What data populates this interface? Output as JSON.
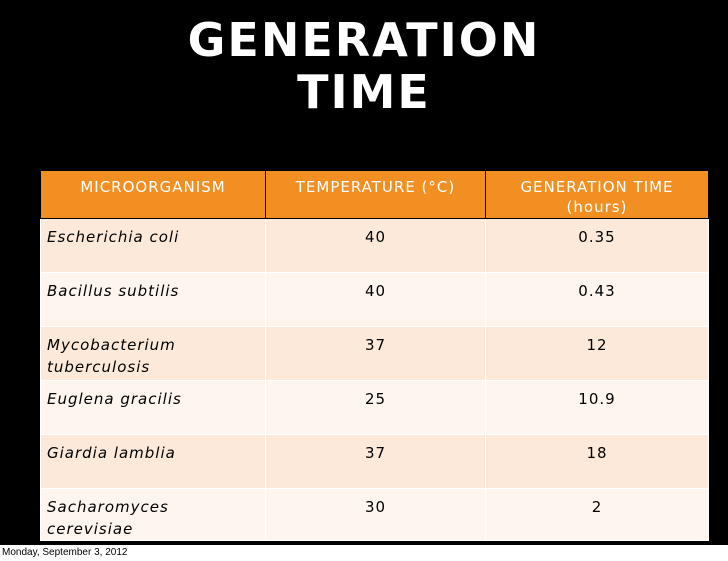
{
  "slide": {
    "title_line1": "GENERATION",
    "title_line2": "TIME"
  },
  "table": {
    "headers": {
      "microorganism": "MICROORGANISM",
      "temperature": "TEMPERATURE (°C)",
      "generation_time": "GENERATION TIME (hours)"
    },
    "rows": [
      {
        "organism": "Escherichia coli",
        "temperature": "40",
        "generation_time": "0.35"
      },
      {
        "organism": "Bacillus subtilis",
        "temperature": "40",
        "generation_time": "0.43"
      },
      {
        "organism": "Mycobacterium tuberculosis",
        "temperature": "37",
        "generation_time": "12"
      },
      {
        "organism": "Euglena gracilis",
        "temperature": "25",
        "generation_time": "10.9"
      },
      {
        "organism": "Giardia lamblia",
        "temperature": "37",
        "generation_time": "18"
      },
      {
        "organism": "Sacharomyces cerevisiae",
        "temperature": "30",
        "generation_time": "2"
      }
    ]
  },
  "footer": {
    "date": "Monday, September 3, 2012"
  },
  "colors": {
    "background": "#000000",
    "header_fill": "#f28f23",
    "row_odd": "#fde9d9",
    "row_even": "#fef5ee"
  }
}
